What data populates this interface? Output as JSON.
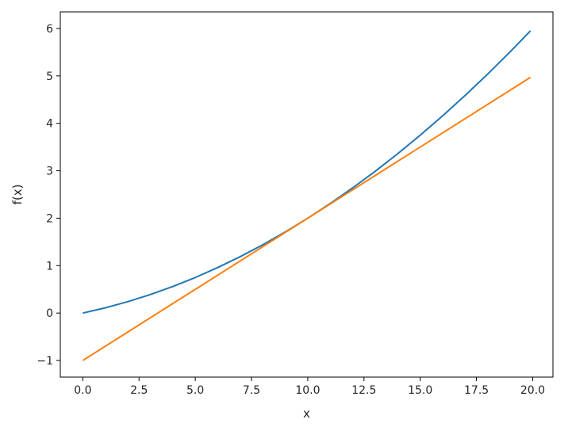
{
  "chart_data": {
    "type": "line",
    "title": "",
    "xlabel": "x",
    "ylabel": "f(x)",
    "xlim": [
      -1.0,
      20.9
    ],
    "ylim": [
      -1.35,
      6.35
    ],
    "grid": false,
    "legend": "none",
    "x_ticks": [
      0.0,
      2.5,
      5.0,
      7.5,
      10.0,
      12.5,
      15.0,
      17.5,
      20.0
    ],
    "x_tick_labels": [
      "0.0",
      "2.5",
      "5.0",
      "7.5",
      "10.0",
      "12.5",
      "15.0",
      "17.5",
      "20.0"
    ],
    "y_ticks": [
      -1,
      0,
      1,
      2,
      3,
      4,
      5,
      6
    ],
    "y_tick_labels": [
      "−1",
      "0",
      "1",
      "2",
      "3",
      "4",
      "5",
      "6"
    ],
    "series": [
      {
        "color": "#1f77b4",
        "x": [
          0.0,
          1.0,
          2.0,
          3.0,
          4.0,
          5.0,
          6.0,
          7.0,
          8.0,
          9.0,
          10.0,
          11.0,
          12.0,
          13.0,
          14.0,
          15.0,
          16.0,
          17.0,
          18.0,
          19.0,
          19.9
        ],
        "y": [
          0.0,
          0.11,
          0.24,
          0.39,
          0.56,
          0.75,
          0.96,
          1.19,
          1.44,
          1.71,
          2.0,
          2.31,
          2.64,
          2.99,
          3.36,
          3.75,
          4.16,
          4.59,
          5.04,
          5.51,
          5.95
        ]
      },
      {
        "color": "#ff7f0e",
        "x": [
          0.0,
          19.9
        ],
        "y": [
          -1.0,
          4.97
        ]
      }
    ]
  }
}
